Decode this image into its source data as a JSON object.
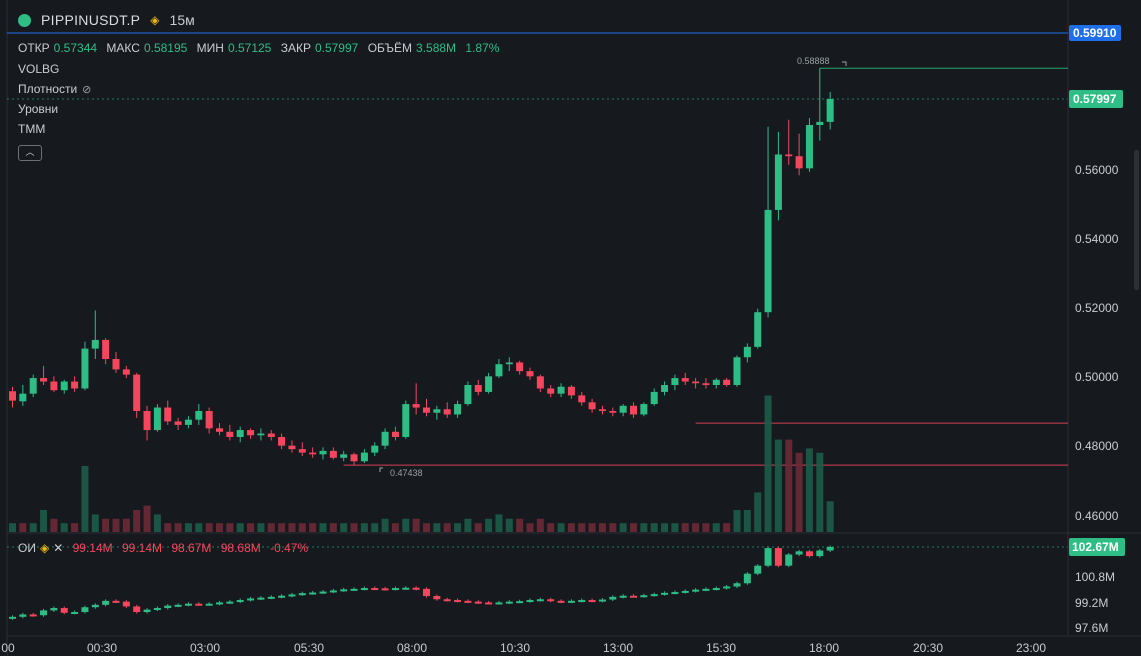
{
  "header": {
    "symbol": "PIPPINUSDT.P",
    "timeframe": "15м",
    "ohlc": {
      "open_label": "ОТКР",
      "open": "0.57344",
      "high_label": "МАКС",
      "high": "0.58195",
      "low_label": "МИН",
      "low": "0.57125",
      "close_label": "ЗАКР",
      "close": "0.57997",
      "volume_label": "ОБЪЁМ",
      "volume": "3.588M",
      "change": "1.87%"
    },
    "indicators": [
      "VOLBG",
      "Плотности",
      "Уровни",
      "TMM"
    ],
    "collapse_icon": "chevron-up-icon"
  },
  "oi_pane": {
    "label": "ОИ",
    "values": [
      "99.14M",
      "99.14M",
      "98.67M",
      "98.68M",
      "-0.47%"
    ],
    "last_value": "102.67M",
    "axis_ticks": [
      "100.8M",
      "99.2M",
      "97.6M"
    ]
  },
  "price_axis": {
    "ticks": [
      "0.56000",
      "0.54000",
      "0.52000",
      "0.50000",
      "0.48000",
      "0.46000"
    ],
    "crosshair_value": "0.59910",
    "last_price": "0.57997"
  },
  "annotations": {
    "high_marker": "0.58888",
    "low_marker": "0.47438"
  },
  "time_axis": [
    "00",
    "00:30",
    "03:00",
    "05:30",
    "08:00",
    "10:30",
    "13:00",
    "15:30",
    "18:00",
    "20:30",
    "23:00"
  ],
  "colors": {
    "up": "#2ebd85",
    "down": "#f6465d",
    "crosshair": "#1f6feb",
    "background": "#161a1e"
  },
  "chart_data": {
    "type": "candlestick",
    "x_axis_labels": [
      "00",
      "00:30",
      "03:00",
      "05:30",
      "08:00",
      "10:30",
      "13:00",
      "15:30",
      "18:00",
      "20:30",
      "23:00"
    ],
    "price_range": [
      0.4545,
      0.6035
    ],
    "candles": [
      [
        0.4957,
        0.497,
        0.491,
        0.493
      ],
      [
        0.4928,
        0.4975,
        0.4915,
        0.495
      ],
      [
        0.495,
        0.5005,
        0.494,
        0.4995
      ],
      [
        0.4995,
        0.503,
        0.4975,
        0.4985
      ],
      [
        0.4985,
        0.5,
        0.4955,
        0.496
      ],
      [
        0.496,
        0.499,
        0.495,
        0.4985
      ],
      [
        0.4985,
        0.5,
        0.4955,
        0.4965
      ],
      [
        0.4965,
        0.51,
        0.496,
        0.508
      ],
      [
        0.508,
        0.519,
        0.505,
        0.5105
      ],
      [
        0.5105,
        0.511,
        0.5035,
        0.505
      ],
      [
        0.505,
        0.507,
        0.501,
        0.502
      ],
      [
        0.502,
        0.503,
        0.4995,
        0.5005
      ],
      [
        0.5005,
        0.501,
        0.488,
        0.49
      ],
      [
        0.49,
        0.4915,
        0.4815,
        0.4845
      ],
      [
        0.4845,
        0.492,
        0.484,
        0.491
      ],
      [
        0.491,
        0.493,
        0.486,
        0.487
      ],
      [
        0.487,
        0.488,
        0.4845,
        0.486
      ],
      [
        0.486,
        0.4885,
        0.485,
        0.4875
      ],
      [
        0.4875,
        0.492,
        0.486,
        0.49
      ],
      [
        0.49,
        0.491,
        0.4835,
        0.485
      ],
      [
        0.485,
        0.4865,
        0.483,
        0.484
      ],
      [
        0.484,
        0.486,
        0.4815,
        0.4825
      ],
      [
        0.4825,
        0.4855,
        0.481,
        0.4845
      ],
      [
        0.4845,
        0.485,
        0.482,
        0.483
      ],
      [
        0.483,
        0.485,
        0.4815,
        0.4835
      ],
      [
        0.4835,
        0.4845,
        0.4815,
        0.4825
      ],
      [
        0.4825,
        0.4835,
        0.479,
        0.48
      ],
      [
        0.48,
        0.4815,
        0.478,
        0.479
      ],
      [
        0.479,
        0.481,
        0.477,
        0.478
      ],
      [
        0.478,
        0.4795,
        0.4765,
        0.4775
      ],
      [
        0.4775,
        0.4795,
        0.476,
        0.4785
      ],
      [
        0.4785,
        0.4795,
        0.476,
        0.4765
      ],
      [
        0.4765,
        0.4785,
        0.4755,
        0.4775
      ],
      [
        0.4775,
        0.478,
        0.4744,
        0.4755
      ],
      [
        0.4755,
        0.479,
        0.475,
        0.478
      ],
      [
        0.478,
        0.481,
        0.477,
        0.48
      ],
      [
        0.48,
        0.485,
        0.479,
        0.484
      ],
      [
        0.484,
        0.4855,
        0.4815,
        0.4825
      ],
      [
        0.4825,
        0.493,
        0.482,
        0.492
      ],
      [
        0.492,
        0.498,
        0.489,
        0.491
      ],
      [
        0.491,
        0.4935,
        0.4885,
        0.4895
      ],
      [
        0.4895,
        0.4915,
        0.4875,
        0.4905
      ],
      [
        0.4905,
        0.4925,
        0.488,
        0.489
      ],
      [
        0.489,
        0.493,
        0.488,
        0.492
      ],
      [
        0.492,
        0.4985,
        0.4915,
        0.4975
      ],
      [
        0.4975,
        0.499,
        0.4945,
        0.4955
      ],
      [
        0.4955,
        0.501,
        0.495,
        0.5
      ],
      [
        0.5,
        0.505,
        0.4995,
        0.5035
      ],
      [
        0.5035,
        0.5055,
        0.5015,
        0.504
      ],
      [
        0.504,
        0.5045,
        0.5005,
        0.5015
      ],
      [
        0.5015,
        0.5025,
        0.499,
        0.5
      ],
      [
        0.5,
        0.5005,
        0.4955,
        0.4965
      ],
      [
        0.4965,
        0.4975,
        0.494,
        0.495
      ],
      [
        0.495,
        0.498,
        0.494,
        0.497
      ],
      [
        0.497,
        0.4975,
        0.4935,
        0.4945
      ],
      [
        0.4945,
        0.4955,
        0.4915,
        0.4925
      ],
      [
        0.4925,
        0.4935,
        0.4895,
        0.4905
      ],
      [
        0.4905,
        0.4915,
        0.489,
        0.49
      ],
      [
        0.49,
        0.491,
        0.4885,
        0.4895
      ],
      [
        0.4895,
        0.492,
        0.4885,
        0.4915
      ],
      [
        0.4915,
        0.4925,
        0.488,
        0.489
      ],
      [
        0.489,
        0.4925,
        0.4885,
        0.492
      ],
      [
        0.492,
        0.4965,
        0.4915,
        0.4955
      ],
      [
        0.4955,
        0.4985,
        0.4945,
        0.4975
      ],
      [
        0.4975,
        0.5005,
        0.496,
        0.4995
      ],
      [
        0.4995,
        0.501,
        0.4975,
        0.4985
      ],
      [
        0.4985,
        0.4995,
        0.4965,
        0.498
      ],
      [
        0.498,
        0.4995,
        0.4965,
        0.4975
      ],
      [
        0.4975,
        0.4995,
        0.4965,
        0.499
      ],
      [
        0.499,
        0.4995,
        0.497,
        0.4975
      ],
      [
        0.4975,
        0.506,
        0.497,
        0.5055
      ],
      [
        0.5055,
        0.5095,
        0.504,
        0.5085
      ],
      [
        0.5085,
        0.5195,
        0.508,
        0.5185
      ],
      [
        0.5185,
        0.572,
        0.517,
        0.548
      ],
      [
        0.548,
        0.5705,
        0.545,
        0.564
      ],
      [
        0.564,
        0.574,
        0.561,
        0.5635
      ],
      [
        0.5635,
        0.57,
        0.558,
        0.56
      ],
      [
        0.56,
        0.5745,
        0.559,
        0.5725
      ],
      [
        0.5725,
        0.5889,
        0.568,
        0.5734
      ],
      [
        0.5734,
        0.582,
        0.5712,
        0.58
      ]
    ],
    "volume": [
      [
        2,
        "u"
      ],
      [
        2,
        "d"
      ],
      [
        2,
        "u"
      ],
      [
        5,
        "u"
      ],
      [
        3,
        "d"
      ],
      [
        2,
        "u"
      ],
      [
        2,
        "d"
      ],
      [
        15,
        "u"
      ],
      [
        4,
        "u"
      ],
      [
        3,
        "d"
      ],
      [
        3,
        "d"
      ],
      [
        3,
        "d"
      ],
      [
        5,
        "d"
      ],
      [
        6,
        "d"
      ],
      [
        4,
        "u"
      ],
      [
        2,
        "d"
      ],
      [
        2,
        "d"
      ],
      [
        2,
        "u"
      ],
      [
        2,
        "u"
      ],
      [
        2,
        "d"
      ],
      [
        2,
        "d"
      ],
      [
        2,
        "d"
      ],
      [
        2,
        "u"
      ],
      [
        2,
        "d"
      ],
      [
        2,
        "u"
      ],
      [
        2,
        "d"
      ],
      [
        2,
        "d"
      ],
      [
        2,
        "d"
      ],
      [
        2,
        "d"
      ],
      [
        2,
        "d"
      ],
      [
        2,
        "u"
      ],
      [
        2,
        "d"
      ],
      [
        2,
        "u"
      ],
      [
        2,
        "d"
      ],
      [
        2,
        "u"
      ],
      [
        2,
        "u"
      ],
      [
        3,
        "u"
      ],
      [
        2,
        "d"
      ],
      [
        3,
        "u"
      ],
      [
        3,
        "d"
      ],
      [
        2,
        "d"
      ],
      [
        2,
        "u"
      ],
      [
        2,
        "d"
      ],
      [
        2,
        "u"
      ],
      [
        3,
        "u"
      ],
      [
        2,
        "d"
      ],
      [
        3,
        "u"
      ],
      [
        4,
        "u"
      ],
      [
        3,
        "u"
      ],
      [
        3,
        "d"
      ],
      [
        2,
        "d"
      ],
      [
        3,
        "d"
      ],
      [
        2,
        "d"
      ],
      [
        2,
        "u"
      ],
      [
        2,
        "d"
      ],
      [
        2,
        "d"
      ],
      [
        2,
        "d"
      ],
      [
        2,
        "d"
      ],
      [
        2,
        "d"
      ],
      [
        2,
        "u"
      ],
      [
        2,
        "d"
      ],
      [
        2,
        "u"
      ],
      [
        2,
        "u"
      ],
      [
        2,
        "u"
      ],
      [
        2,
        "u"
      ],
      [
        2,
        "d"
      ],
      [
        2,
        "d"
      ],
      [
        2,
        "d"
      ],
      [
        2,
        "u"
      ],
      [
        2,
        "d"
      ],
      [
        5,
        "u"
      ],
      [
        5,
        "u"
      ],
      [
        9,
        "u"
      ],
      [
        31,
        "u"
      ],
      [
        21,
        "u"
      ],
      [
        21,
        "d"
      ],
      [
        18,
        "d"
      ],
      [
        19,
        "u"
      ],
      [
        18,
        "u"
      ],
      [
        7,
        "u"
      ]
    ],
    "open_interest": [
      [
        98.2,
        98.3
      ],
      [
        98.3,
        98.45
      ],
      [
        98.45,
        98.4
      ],
      [
        98.4,
        98.7
      ],
      [
        98.7,
        98.85
      ],
      [
        98.85,
        98.55
      ],
      [
        98.55,
        98.6
      ],
      [
        98.6,
        98.9
      ],
      [
        98.9,
        99.05
      ],
      [
        99.05,
        99.3
      ],
      [
        99.3,
        99.25
      ],
      [
        99.25,
        98.95
      ],
      [
        98.95,
        98.6
      ],
      [
        98.6,
        98.75
      ],
      [
        98.75,
        98.85
      ],
      [
        98.85,
        99.0
      ],
      [
        99.0,
        99.05
      ],
      [
        99.05,
        99.12
      ],
      [
        99.12,
        99.1
      ],
      [
        99.1,
        99.12
      ],
      [
        99.12,
        99.2
      ],
      [
        99.2,
        99.25
      ],
      [
        99.25,
        99.35
      ],
      [
        99.35,
        99.45
      ],
      [
        99.45,
        99.5
      ],
      [
        99.5,
        99.55
      ],
      [
        99.55,
        99.62
      ],
      [
        99.62,
        99.7
      ],
      [
        99.7,
        99.78
      ],
      [
        99.78,
        99.82
      ],
      [
        99.82,
        99.88
      ],
      [
        99.88,
        99.95
      ],
      [
        99.95,
        100.02
      ],
      [
        100.02,
        100.05
      ],
      [
        100.05,
        100.1
      ],
      [
        100.1,
        100.08
      ],
      [
        100.08,
        100.05
      ],
      [
        100.05,
        100.1
      ],
      [
        100.1,
        100.12
      ],
      [
        100.12,
        100.05
      ],
      [
        100.05,
        99.6
      ],
      [
        99.6,
        99.4
      ],
      [
        99.4,
        99.35
      ],
      [
        99.35,
        99.3
      ],
      [
        99.3,
        99.25
      ],
      [
        99.25,
        99.2
      ],
      [
        99.2,
        99.18
      ],
      [
        99.18,
        99.2
      ],
      [
        99.2,
        99.25
      ],
      [
        99.25,
        99.28
      ],
      [
        99.28,
        99.35
      ],
      [
        99.35,
        99.4
      ],
      [
        99.4,
        99.3
      ],
      [
        99.3,
        99.25
      ],
      [
        99.25,
        99.3
      ],
      [
        99.3,
        99.35
      ],
      [
        99.35,
        99.3
      ],
      [
        99.3,
        99.38
      ],
      [
        99.38,
        99.55
      ],
      [
        99.55,
        99.62
      ],
      [
        99.62,
        99.6
      ],
      [
        99.6,
        99.65
      ],
      [
        99.65,
        99.72
      ],
      [
        99.72,
        99.8
      ],
      [
        99.8,
        99.85
      ],
      [
        99.85,
        99.92
      ],
      [
        99.92,
        100.0
      ],
      [
        100.0,
        100.05
      ],
      [
        100.05,
        100.1
      ],
      [
        100.1,
        100.2
      ],
      [
        100.2,
        100.4
      ],
      [
        100.4,
        101.0
      ],
      [
        101.0,
        101.5
      ],
      [
        101.5,
        102.6
      ],
      [
        102.6,
        101.5
      ],
      [
        101.5,
        102.2
      ],
      [
        102.2,
        102.4
      ],
      [
        102.4,
        102.1
      ],
      [
        102.1,
        102.45
      ],
      [
        102.45,
        102.67
      ]
    ],
    "horizontal_levels": [
      {
        "price": 0.4865,
        "start_index": 66,
        "color": "#f6465d"
      },
      {
        "price": 0.4744,
        "start_index": 32,
        "color": "#f6465d"
      },
      {
        "price": 0.58888,
        "start_index": 78,
        "color": "#2ebd85"
      }
    ]
  }
}
